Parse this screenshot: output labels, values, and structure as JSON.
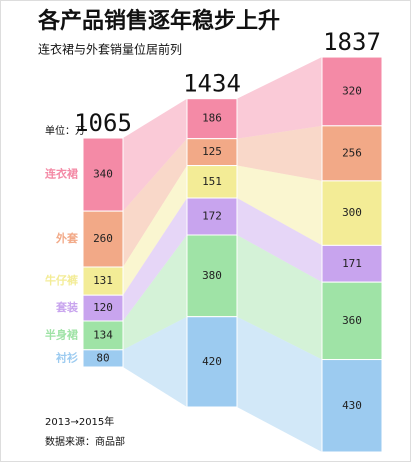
{
  "chart_data": {
    "type": "stacked-flow",
    "title": "各产品销售逐年稳步上升",
    "subtitle": "连衣裙与外套销量位居前列",
    "unit": "单位：万",
    "categories": [
      null,
      null,
      null
    ],
    "totals": [
      1065,
      1434,
      1837
    ],
    "series": [
      {
        "name": "连衣裙",
        "color": "#f48aa6",
        "values": [
          340,
          186,
          320
        ]
      },
      {
        "name": "外套",
        "color": "#f2a987",
        "values": [
          260,
          125,
          256
        ]
      },
      {
        "name": "牛仔裤",
        "color": "#f3ec96",
        "values": [
          131,
          151,
          300
        ]
      },
      {
        "name": "套装",
        "color": "#c8a4ee",
        "values": [
          120,
          172,
          171
        ]
      },
      {
        "name": "半身裙",
        "color": "#9fe3a6",
        "values": [
          134,
          380,
          360
        ]
      },
      {
        "name": "衬衫",
        "color": "#9ccbf0",
        "values": [
          80,
          420,
          430
        ]
      }
    ],
    "period": "2013→2015年",
    "source": "数据来源：商品部"
  }
}
